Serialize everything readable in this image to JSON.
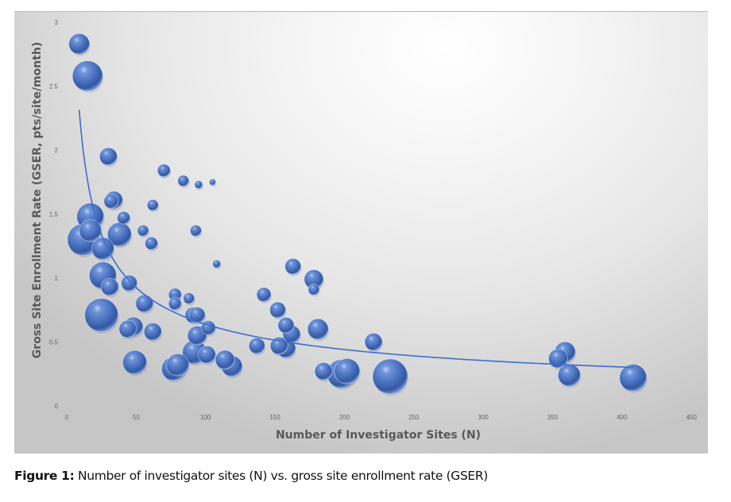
{
  "figure": {
    "caption_label": "Figure 1:",
    "caption_text": " Number of investigator sites (N) vs. gross site enrollment rate (GSER)"
  },
  "colors": {
    "bubble": "#4a72c0",
    "bubble_highlight": "#a9c2ee",
    "bubble_shadow": "#23427f",
    "trendline": "#3c6fd0",
    "axis_title": "#595959",
    "tick_label": "#666666"
  },
  "chart_data": {
    "type": "bubble",
    "title": "",
    "xlabel": "Number of Investigator Sites (N)",
    "ylabel": "Gross Site Enrollment Rate (GSER, pts/site/month)",
    "xlim": [
      0,
      450
    ],
    "ylim": [
      0,
      3
    ],
    "x_ticks": [
      "0",
      "50",
      "100",
      "150",
      "200",
      "250",
      "300",
      "350",
      "400",
      "450"
    ],
    "y_ticks": [
      "0",
      "0.5",
      "1",
      "1.5",
      "2",
      "2.5",
      "3"
    ],
    "grid": false,
    "legend": null,
    "trendline": {
      "type": "power",
      "a": 7.5,
      "b": -0.535,
      "x_start": 9,
      "x_end": 408
    },
    "points": [
      {
        "x": 9,
        "y": 2.83,
        "size": 13
      },
      {
        "x": 15,
        "y": 2.58,
        "size": 19
      },
      {
        "x": 30,
        "y": 1.95,
        "size": 11
      },
      {
        "x": 32,
        "y": 1.6,
        "size": 9
      },
      {
        "x": 34,
        "y": 1.61,
        "size": 11
      },
      {
        "x": 17,
        "y": 1.48,
        "size": 17
      },
      {
        "x": 17,
        "y": 1.37,
        "size": 14
      },
      {
        "x": 12,
        "y": 1.3,
        "size": 20
      },
      {
        "x": 26,
        "y": 1.23,
        "size": 14
      },
      {
        "x": 41,
        "y": 1.47,
        "size": 8
      },
      {
        "x": 38,
        "y": 1.34,
        "size": 15
      },
      {
        "x": 55,
        "y": 1.37,
        "size": 7
      },
      {
        "x": 61,
        "y": 1.27,
        "size": 8
      },
      {
        "x": 62,
        "y": 1.57,
        "size": 7
      },
      {
        "x": 70,
        "y": 1.84,
        "size": 8
      },
      {
        "x": 84,
        "y": 1.76,
        "size": 7
      },
      {
        "x": 95,
        "y": 1.73,
        "size": 5
      },
      {
        "x": 105,
        "y": 1.75,
        "size": 4
      },
      {
        "x": 93,
        "y": 1.37,
        "size": 7
      },
      {
        "x": 108,
        "y": 1.11,
        "size": 5
      },
      {
        "x": 26,
        "y": 1.02,
        "size": 17
      },
      {
        "x": 31,
        "y": 0.93,
        "size": 11
      },
      {
        "x": 25,
        "y": 0.71,
        "size": 21
      },
      {
        "x": 45,
        "y": 0.96,
        "size": 10
      },
      {
        "x": 56,
        "y": 0.8,
        "size": 11
      },
      {
        "x": 44,
        "y": 0.6,
        "size": 11
      },
      {
        "x": 48,
        "y": 0.62,
        "size": 12
      },
      {
        "x": 62,
        "y": 0.58,
        "size": 11
      },
      {
        "x": 49,
        "y": 0.34,
        "size": 15
      },
      {
        "x": 78,
        "y": 0.87,
        "size": 8
      },
      {
        "x": 78,
        "y": 0.8,
        "size": 8
      },
      {
        "x": 88,
        "y": 0.84,
        "size": 7
      },
      {
        "x": 91,
        "y": 0.71,
        "size": 10
      },
      {
        "x": 94,
        "y": 0.71,
        "size": 10
      },
      {
        "x": 94,
        "y": 0.55,
        "size": 12
      },
      {
        "x": 102,
        "y": 0.61,
        "size": 9
      },
      {
        "x": 92,
        "y": 0.42,
        "size": 15
      },
      {
        "x": 101,
        "y": 0.4,
        "size": 11
      },
      {
        "x": 114,
        "y": 0.36,
        "size": 12
      },
      {
        "x": 119,
        "y": 0.31,
        "size": 13
      },
      {
        "x": 77,
        "y": 0.29,
        "size": 15
      },
      {
        "x": 80,
        "y": 0.32,
        "size": 14
      },
      {
        "x": 142,
        "y": 0.87,
        "size": 9
      },
      {
        "x": 163,
        "y": 1.09,
        "size": 10
      },
      {
        "x": 152,
        "y": 0.75,
        "size": 10
      },
      {
        "x": 178,
        "y": 0.99,
        "size": 12
      },
      {
        "x": 178,
        "y": 0.91,
        "size": 7
      },
      {
        "x": 158,
        "y": 0.63,
        "size": 10
      },
      {
        "x": 162,
        "y": 0.56,
        "size": 11
      },
      {
        "x": 137,
        "y": 0.47,
        "size": 10
      },
      {
        "x": 153,
        "y": 0.47,
        "size": 11
      },
      {
        "x": 158,
        "y": 0.45,
        "size": 12
      },
      {
        "x": 181,
        "y": 0.6,
        "size": 13
      },
      {
        "x": 221,
        "y": 0.5,
        "size": 11
      },
      {
        "x": 185,
        "y": 0.27,
        "size": 11
      },
      {
        "x": 198,
        "y": 0.25,
        "size": 18
      },
      {
        "x": 202,
        "y": 0.27,
        "size": 16
      },
      {
        "x": 233,
        "y": 0.23,
        "size": 22
      },
      {
        "x": 354,
        "y": 0.37,
        "size": 12
      },
      {
        "x": 359,
        "y": 0.42,
        "size": 13
      },
      {
        "x": 362,
        "y": 0.24,
        "size": 14
      },
      {
        "x": 408,
        "y": 0.22,
        "size": 17
      }
    ]
  }
}
